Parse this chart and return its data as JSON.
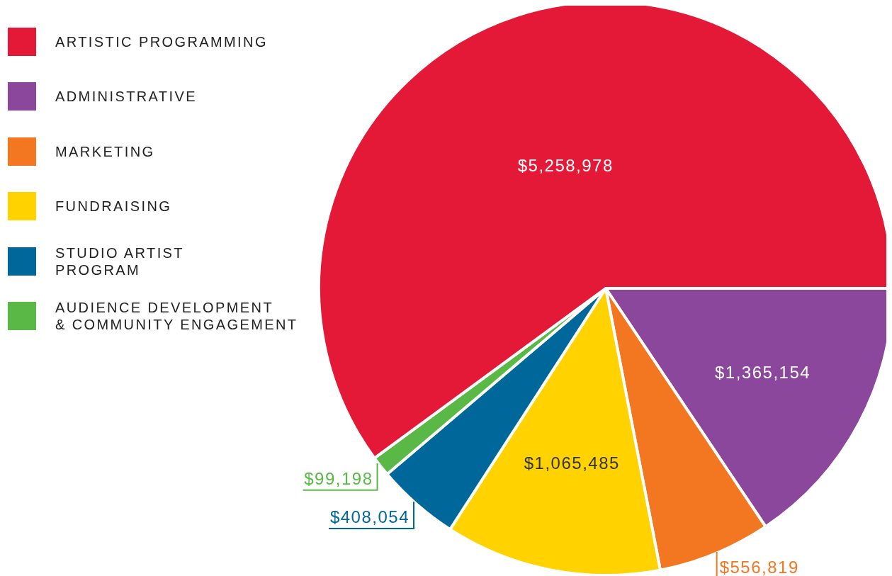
{
  "chart_data": {
    "type": "pie",
    "categories": [
      "ARTISTIC PROGRAMMING",
      "ADMINISTRATIVE",
      "MARKETING",
      "FUNDRAISING",
      "STUDIO ARTIST\nPROGRAM",
      "AUDIENCE DEVELOPMENT\n& COMMUNITY ENGAGEMENT"
    ],
    "values": [
      5258978,
      1365154,
      556819,
      1065485,
      408054,
      99198
    ],
    "value_labels": [
      "$5,258,978",
      "$1,365,154",
      "$556,819",
      "$1,065,485",
      "$408,054",
      "$99,198"
    ],
    "colors": [
      "#e31937",
      "#8b479c",
      "#f37721",
      "#ffd200",
      "#00679a",
      "#5ab946"
    ],
    "legend": "top left"
  }
}
